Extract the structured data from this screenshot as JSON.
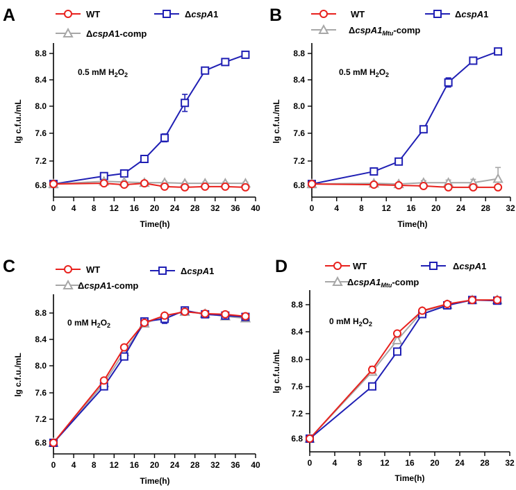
{
  "colors": {
    "WT": "#e8211d",
    "KO": "#1f1fb4",
    "comp": "#a7a7a7"
  },
  "chart_data": [
    {
      "letter": "A",
      "type": "line",
      "xlabel": "Time(h)",
      "ylabel": "lg c.f.u./mL",
      "xlim": [
        0,
        40
      ],
      "ylim": [
        6.7,
        9.0
      ],
      "xticks": [
        "0",
        "4",
        "8",
        "12",
        "16",
        "20",
        "24",
        "28",
        "32",
        "36",
        "40"
      ],
      "yticks": [
        "6.8",
        "7.2",
        "7.6",
        "8.0",
        "8.4",
        "8.8"
      ],
      "condition": {
        "pre": "0.5 mM H",
        "sub": "2",
        "mid": "O",
        "sub2": "2"
      },
      "legend": {
        "wt": "WT",
        "ko": {
          "pre": "Δ",
          "ital": "cspA",
          "post": "1"
        },
        "comp": {
          "pre": "Δ",
          "ital": "cspA",
          "post": "1-comp",
          "sub": ""
        }
      },
      "series": [
        {
          "key": "ko",
          "name": "ΔcspA1",
          "x": [
            0,
            10,
            14,
            18,
            22,
            26,
            30,
            34,
            38
          ],
          "y": [
            6.82,
            6.94,
            6.98,
            7.2,
            7.52,
            8.05,
            8.54,
            8.67,
            8.78
          ],
          "err": [
            0.02,
            0.02,
            0.02,
            0.03,
            0.06,
            0.13,
            0.03,
            0.03,
            0.02
          ]
        },
        {
          "key": "comp",
          "name": "ΔcspA1-comp",
          "x": [
            0,
            10,
            14,
            18,
            22,
            26,
            30,
            34,
            38
          ],
          "y": [
            6.82,
            6.86,
            6.85,
            6.84,
            6.84,
            6.83,
            6.83,
            6.83,
            6.83
          ],
          "err": [
            0.02,
            0.02,
            0.02,
            0.02,
            0.02,
            0.02,
            0.02,
            0.02,
            0.02
          ]
        },
        {
          "key": "wt",
          "name": "WT",
          "x": [
            0,
            10,
            14,
            18,
            22,
            26,
            30,
            34,
            38
          ],
          "y": [
            6.82,
            6.83,
            6.81,
            6.83,
            6.78,
            6.77,
            6.78,
            6.78,
            6.77
          ],
          "err": [
            0.02,
            0.02,
            0.02,
            0.02,
            0.02,
            0.02,
            0.02,
            0.02,
            0.02
          ]
        }
      ]
    },
    {
      "letter": "B",
      "type": "line",
      "xlabel": "Time(h)",
      "ylabel": "lg c.f.u./mL",
      "xlim": [
        0,
        32
      ],
      "ylim": [
        6.7,
        9.0
      ],
      "xticks": [
        "0",
        "4",
        "8",
        "12",
        "16",
        "20",
        "24",
        "28",
        "32"
      ],
      "yticks": [
        "6.8",
        "7.2",
        "7.6",
        "8.0",
        "8.4",
        "8.8"
      ],
      "condition": {
        "pre": "0.5 mM H",
        "sub": "2",
        "mid": "O",
        "sub2": "2"
      },
      "legend": {
        "wt": "WT",
        "ko": {
          "pre": "Δ",
          "ital": "cspA",
          "post": "1"
        },
        "comp": {
          "pre": "Δ",
          "ital": "cspA1",
          "sub": "Mtu",
          "post": "-comp"
        }
      },
      "series": [
        {
          "key": "ko",
          "name": "ΔcspA1",
          "x": [
            0,
            10,
            14,
            18,
            22,
            26,
            30
          ],
          "y": [
            6.82,
            7.01,
            7.16,
            7.65,
            8.36,
            8.69,
            8.83
          ],
          "err": [
            0.02,
            0.03,
            0.03,
            0.03,
            0.07,
            0.04,
            0.02
          ]
        },
        {
          "key": "comp",
          "name": "ΔcspA1Mtu-comp",
          "x": [
            0,
            10,
            14,
            18,
            22,
            26,
            30
          ],
          "y": [
            6.82,
            6.83,
            6.82,
            6.84,
            6.84,
            6.84,
            6.9
          ],
          "err": [
            0.02,
            0.02,
            0.02,
            0.03,
            0.04,
            0.05,
            0.17
          ]
        },
        {
          "key": "wt",
          "name": "WT",
          "x": [
            0,
            10,
            14,
            18,
            22,
            26,
            30
          ],
          "y": [
            6.82,
            6.81,
            6.8,
            6.79,
            6.77,
            6.77,
            6.77
          ],
          "err": [
            0.02,
            0.02,
            0.02,
            0.02,
            0.02,
            0.02,
            0.02
          ]
        }
      ]
    },
    {
      "letter": "C",
      "type": "line",
      "xlabel": "Time(h)",
      "ylabel": "lg c.f.u./mL",
      "xlim": [
        0,
        40
      ],
      "ylim": [
        6.7,
        9.0
      ],
      "xticks": [
        "0",
        "4",
        "8",
        "12",
        "16",
        "20",
        "24",
        "28",
        "32",
        "36",
        "40"
      ],
      "yticks": [
        "6.8",
        "7.2",
        "7.6",
        "8.0",
        "8.4",
        "8.8"
      ],
      "condition": {
        "pre": "0 mM H",
        "sub": "2",
        "mid": "O",
        "sub2": "2"
      },
      "legend": {
        "wt": "WT",
        "ko": {
          "pre": "Δ",
          "ital": "cspA",
          "post": "1"
        },
        "comp": {
          "pre": "Δ",
          "ital": "cspA",
          "post": "1-comp",
          "sub": ""
        }
      },
      "series": [
        {
          "key": "comp",
          "name": "ΔcspA1-comp",
          "x": [
            0,
            10,
            14,
            18,
            22,
            26,
            30,
            34,
            38
          ],
          "y": [
            6.8,
            7.72,
            8.2,
            8.64,
            8.75,
            8.82,
            8.79,
            8.75,
            8.72
          ],
          "err": [
            0.02,
            0.03,
            0.03,
            0.03,
            0.03,
            0.03,
            0.03,
            0.03,
            0.04
          ]
        },
        {
          "key": "ko",
          "name": "ΔcspA1",
          "x": [
            0,
            10,
            14,
            18,
            22,
            26,
            30,
            34,
            38
          ],
          "y": [
            6.8,
            7.67,
            8.13,
            8.67,
            8.71,
            8.84,
            8.78,
            8.76,
            8.74
          ],
          "err": [
            0.02,
            0.03,
            0.03,
            0.03,
            0.07,
            0.03,
            0.03,
            0.03,
            0.03
          ]
        },
        {
          "key": "wt",
          "name": "WT",
          "x": [
            0,
            10,
            14,
            18,
            22,
            26,
            30,
            34,
            38
          ],
          "y": [
            6.8,
            7.76,
            8.27,
            8.65,
            8.76,
            8.82,
            8.79,
            8.78,
            8.75
          ],
          "err": [
            0.02,
            0.03,
            0.03,
            0.03,
            0.03,
            0.03,
            0.03,
            0.03,
            0.03
          ]
        }
      ]
    },
    {
      "letter": "D",
      "type": "line",
      "xlabel": "Time(h)",
      "ylabel": "lg c.f.u./mL",
      "xlim": [
        0,
        32
      ],
      "ylim": [
        6.7,
        9.0
      ],
      "xticks": [
        "0",
        "4",
        "8",
        "12",
        "16",
        "20",
        "24",
        "28",
        "32"
      ],
      "yticks": [
        "6.8",
        "7.2",
        "7.6",
        "8.0",
        "8.4",
        "8.8"
      ],
      "condition": {
        "pre": "0 mM H",
        "sub": "2",
        "mid": "O",
        "sub2": "2"
      },
      "legend": {
        "wt": "WT",
        "ko": {
          "pre": "Δ",
          "ital": "cspA",
          "post": "1"
        },
        "comp": {
          "pre": "Δ",
          "ital": "cspA1",
          "sub": "Mtu",
          "post": "-comp"
        }
      },
      "series": [
        {
          "key": "comp",
          "name": "ΔcspA1Mtu-comp",
          "x": [
            0,
            10,
            14,
            18,
            22,
            26,
            30
          ],
          "y": [
            6.8,
            7.8,
            8.27,
            8.7,
            8.8,
            8.87,
            8.87
          ],
          "err": [
            0.02,
            0.03,
            0.04,
            0.03,
            0.03,
            0.02,
            0.02
          ]
        },
        {
          "key": "ko",
          "name": "ΔcspA1",
          "x": [
            0,
            10,
            14,
            18,
            22,
            26,
            30
          ],
          "y": [
            6.8,
            7.58,
            8.1,
            8.66,
            8.79,
            8.87,
            8.86
          ],
          "err": [
            0.02,
            0.03,
            0.04,
            0.03,
            0.03,
            0.02,
            0.02
          ]
        },
        {
          "key": "wt",
          "name": "WT",
          "x": [
            0,
            10,
            14,
            18,
            22,
            26,
            30
          ],
          "y": [
            6.8,
            7.83,
            8.37,
            8.71,
            8.81,
            8.87,
            8.87
          ],
          "err": [
            0.02,
            0.05,
            0.03,
            0.03,
            0.03,
            0.02,
            0.02
          ]
        }
      ]
    }
  ]
}
